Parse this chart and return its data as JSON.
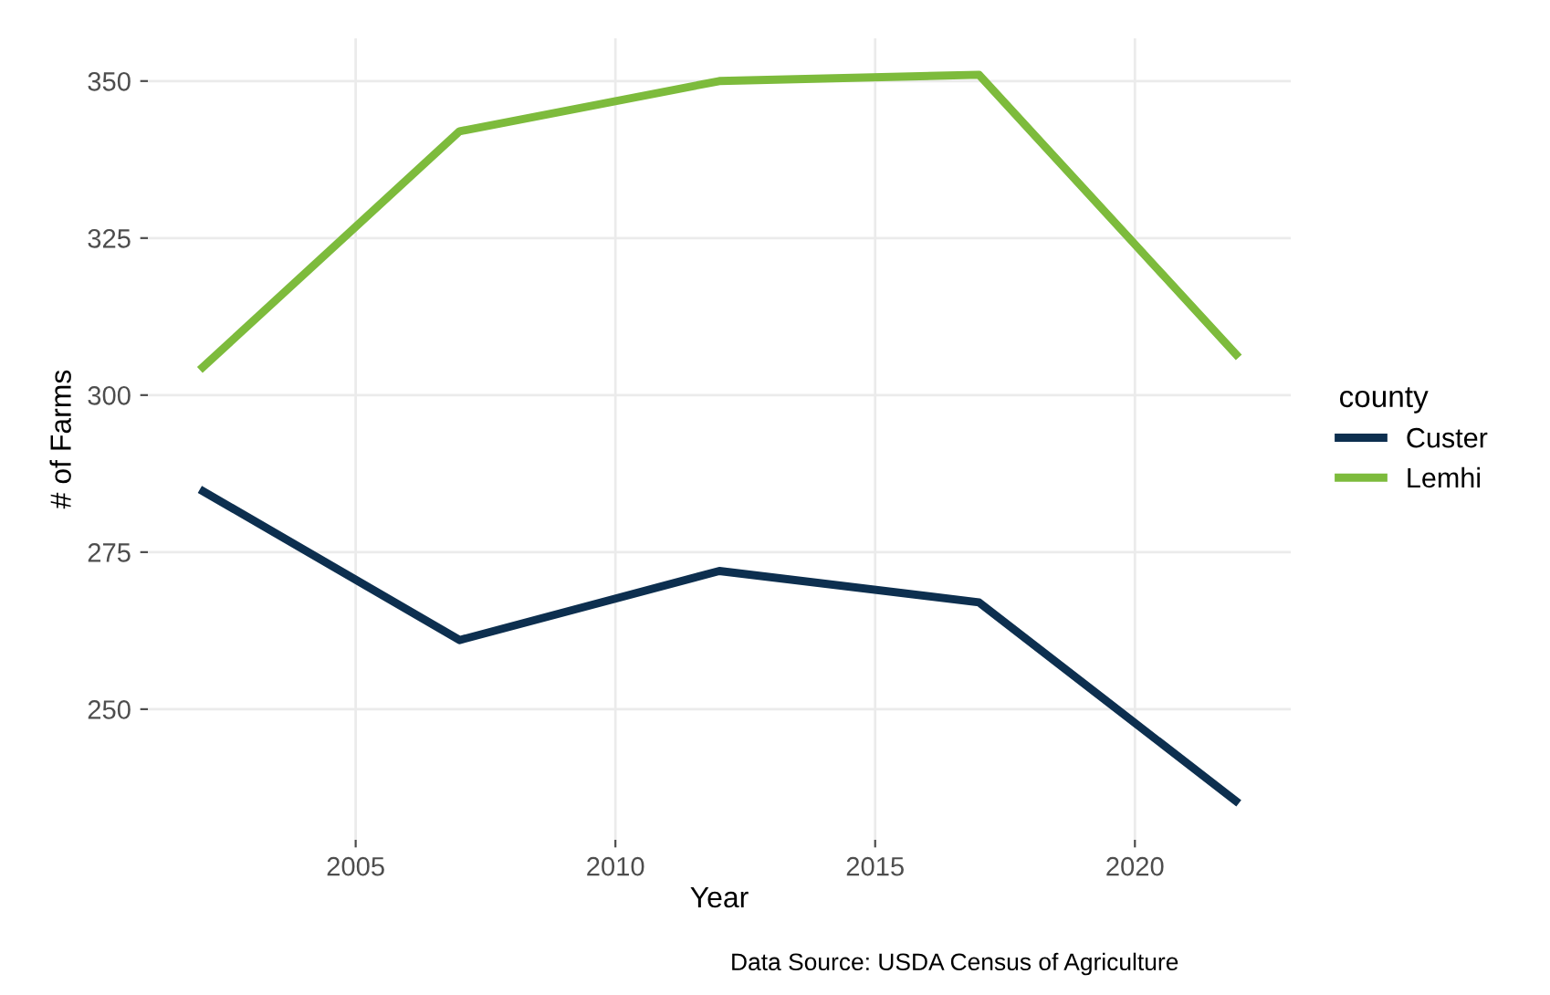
{
  "chart_data": {
    "type": "line",
    "xlabel": "Year",
    "ylabel": "# of Farms",
    "legend_title": "county",
    "annotations": [
      "Data Source: USDA Census of Agriculture"
    ],
    "x": [
      2002,
      2007,
      2012,
      2017,
      2022
    ],
    "series": [
      {
        "name": "Custer",
        "color": "#0d2f4f",
        "values": [
          285,
          261,
          272,
          267,
          235
        ]
      },
      {
        "name": "Lemhi",
        "color": "#7dbb3c",
        "values": [
          304,
          342,
          350,
          351,
          306
        ]
      }
    ],
    "xlim": [
      2001,
      2023
    ],
    "ylim": [
      229.2,
      356.8
    ],
    "xticks": [
      2005,
      2010,
      2015,
      2020
    ],
    "yticks": [
      250,
      275,
      300,
      325,
      350
    ],
    "grid": true,
    "legend": "right",
    "line_style": "solid",
    "marker": "none"
  }
}
